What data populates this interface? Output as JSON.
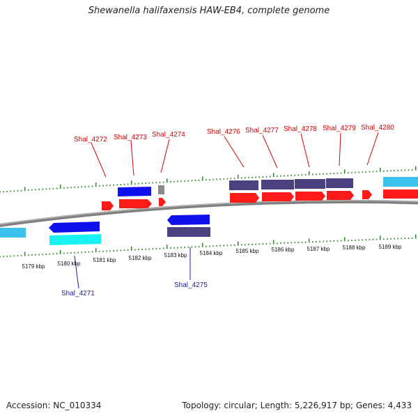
{
  "title": "Shewanella halifaxensis HAW-EB4, complete genome",
  "footer": {
    "accession": "Accession: NC_010334",
    "topology": "Topology: circular; Length: 5,226,917 bp; Genes: 4,433"
  },
  "colors": {
    "backbone": "#808080",
    "tick": "#2e8b2e",
    "forward_label": "#d40000",
    "reverse_label": "#1a1aa0",
    "red": "#ff1a1a",
    "blue": "#1010ee",
    "slate": "#4a4280",
    "cyan": "#19f2f2",
    "sky": "#3cc0ec",
    "grey": "#8a8a8a"
  },
  "scale_labels": [
    "5179 kbp",
    "5180 kbp",
    "5181 kbp",
    "5182 kbp",
    "5183 kbp",
    "5184 kbp",
    "5185 kbp",
    "5186 kbp",
    "5187 kbp",
    "5188 kbp",
    "5189 kbp"
  ],
  "gene_labels": {
    "forward": [
      "Shal_4272",
      "Shal_4273",
      "Shal_4274",
      "Shal_4276",
      "Shal_4277",
      "Shal_4278",
      "Shal_4279",
      "Shal_4280"
    ],
    "reverse": [
      "Shal_4271",
      "Shal_4275"
    ]
  }
}
